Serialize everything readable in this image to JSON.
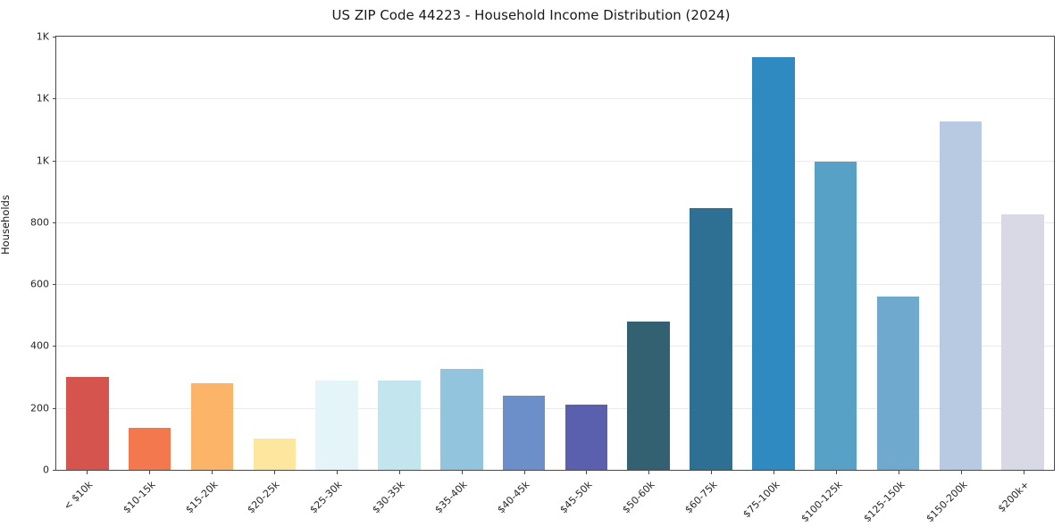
{
  "chart_data": {
    "type": "bar",
    "title": "US ZIP Code 44223 - Household Income Distribution (2024)",
    "xlabel": "",
    "ylabel": "Households",
    "categories": [
      "< $10k",
      "$10-15k",
      "$15-20k",
      "$20-25k",
      "$25-30k",
      "$30-35k",
      "$35-40k",
      "$40-45k",
      "$45-50k",
      "$50-60k",
      "$60-75k",
      "$75-100k",
      "$100-125k",
      "$125-150k",
      "$150-200k",
      "$200k+"
    ],
    "values": [
      300,
      135,
      280,
      100,
      290,
      290,
      325,
      240,
      210,
      480,
      845,
      1335,
      995,
      560,
      1125,
      825
    ],
    "bar_colors": [
      "#d6544e",
      "#f4784e",
      "#fcb469",
      "#fde79f",
      "#e4f4f8",
      "#c3e6ee",
      "#92c4de",
      "#6d8fc9",
      "#5a60ad",
      "#336172",
      "#2d7093",
      "#2e8ac1",
      "#57a1c6",
      "#70a9ce",
      "#b8c9e2",
      "#d9d9e6"
    ],
    "ylim": [
      0,
      1400
    ],
    "yticks": [
      {
        "value": 0,
        "label": "0"
      },
      {
        "value": 200,
        "label": "200"
      },
      {
        "value": 400,
        "label": "400"
      },
      {
        "value": 600,
        "label": "600"
      },
      {
        "value": 800,
        "label": "800"
      },
      {
        "value": 1000,
        "label": "1K"
      },
      {
        "value": 1200,
        "label": "1K"
      },
      {
        "value": 1400,
        "label": "1K"
      }
    ],
    "grid": "horizontal",
    "legend": "none",
    "x_tick_rotation_deg": 45
  }
}
